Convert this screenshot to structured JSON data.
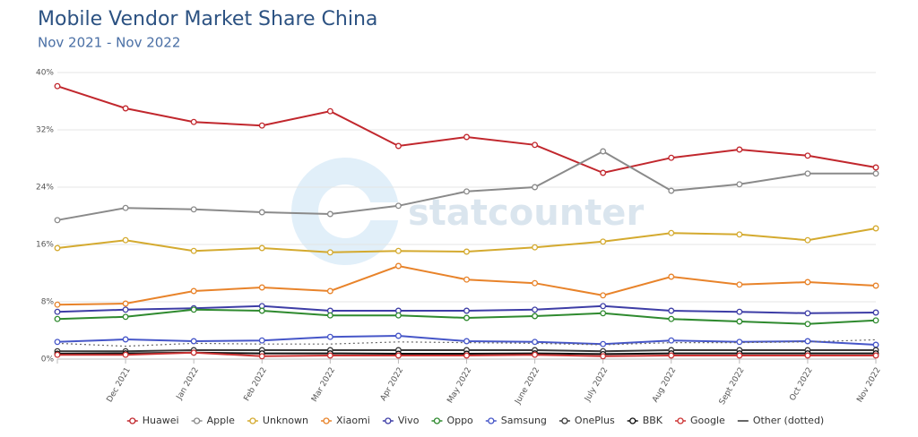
{
  "chart_data": {
    "type": "line",
    "title": "Mobile Vendor Market Share China",
    "subtitle": "Nov 2021 - Nov 2022",
    "watermark": "statcounter",
    "categories": [
      null,
      "Dec 2021",
      "Jan 2022",
      "Feb 2022",
      "Mar 2022",
      "Apr 2022",
      "May 2022",
      "June 2022",
      "July 2022",
      "Aug 2022",
      "Sept 2022",
      "Oct 2022",
      "Nov 2022"
    ],
    "ylim": [
      0,
      40
    ],
    "yticks": [
      {
        "value": 0,
        "label": "0%"
      },
      {
        "value": 8,
        "label": "8%"
      },
      {
        "value": 16,
        "label": "16%"
      },
      {
        "value": 24,
        "label": "24%"
      },
      {
        "value": 32,
        "label": "32%"
      },
      {
        "value": 40,
        "label": "40%"
      }
    ],
    "grid": true,
    "legend": "bottom",
    "series": [
      {
        "name": "Huawei",
        "color": "#c1272d",
        "values": [
          38.1,
          35,
          33.1,
          32.6,
          34.6,
          29.75,
          31,
          29.9,
          26,
          28.1,
          29.25,
          28.4,
          26.75
        ]
      },
      {
        "name": "Apple",
        "color": "#8a8a8a",
        "values": [
          19.4,
          21.1,
          20.9,
          20.5,
          20.25,
          21.4,
          23.4,
          24,
          29,
          23.5,
          24.4,
          25.9,
          25.9
        ]
      },
      {
        "name": "Unknown",
        "color": "#d4aa2f",
        "values": [
          15.5,
          16.6,
          15.1,
          15.5,
          14.9,
          15.1,
          15,
          15.6,
          16.4,
          17.6,
          17.4,
          16.6,
          18.25
        ]
      },
      {
        "name": "Xiaomi",
        "color": "#e8832a",
        "values": [
          7.6,
          7.75,
          9.5,
          10,
          9.5,
          13,
          11.1,
          10.6,
          8.9,
          11.5,
          10.4,
          10.75,
          10.25
        ]
      },
      {
        "name": "Vivo",
        "color": "#3d3da6",
        "values": [
          6.6,
          6.9,
          7.1,
          7.4,
          6.75,
          6.75,
          6.75,
          6.9,
          7.4,
          6.75,
          6.6,
          6.4,
          6.5
        ]
      },
      {
        "name": "Oppo",
        "color": "#2f8a2f",
        "values": [
          5.6,
          5.9,
          6.9,
          6.75,
          6.1,
          6.1,
          5.75,
          6,
          6.4,
          5.6,
          5.25,
          4.9,
          5.4
        ]
      },
      {
        "name": "Samsung",
        "color": "#4656c8",
        "values": [
          2.4,
          2.75,
          2.5,
          2.6,
          3.1,
          3.25,
          2.5,
          2.4,
          2.1,
          2.6,
          2.4,
          2.5,
          2
        ]
      },
      {
        "name": "OnePlus",
        "color": "#3a3a3a",
        "values": [
          1.1,
          1.1,
          1.25,
          1.25,
          1.25,
          1.25,
          1.25,
          1.25,
          1.1,
          1.25,
          1.25,
          1.25,
          1.25
        ]
      },
      {
        "name": "BBK",
        "color": "#111111",
        "values": [
          0.75,
          0.8,
          0.9,
          0.8,
          0.8,
          0.75,
          0.75,
          0.8,
          0.7,
          0.8,
          0.8,
          0.8,
          0.8
        ]
      },
      {
        "name": "Google",
        "color": "#cc3333",
        "values": [
          0.6,
          0.6,
          0.9,
          0.4,
          0.5,
          0.5,
          0.5,
          0.6,
          0.4,
          0.5,
          0.5,
          0.5,
          0.5
        ]
      },
      {
        "name": "Other (dotted)",
        "color": "#666666",
        "style": "dotted",
        "markers": false,
        "values": [
          2.2,
          1.8,
          2.2,
          2.1,
          2.1,
          2.4,
          2.3,
          2.2,
          2,
          2.3,
          2.3,
          2.4,
          2.7
        ]
      }
    ]
  }
}
